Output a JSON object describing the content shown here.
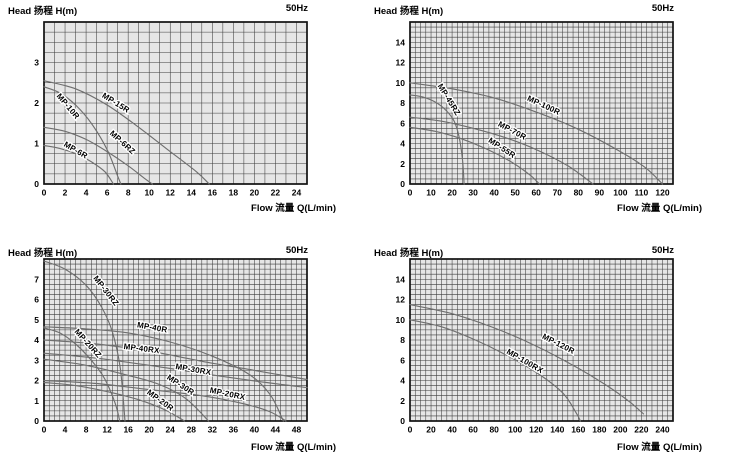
{
  "colors": {
    "plot_bg": "#e6e6e6",
    "grid": "#3d3d3d",
    "border": "#111111",
    "curve": "#6f6f6f",
    "text": "#000000",
    "label_halo": "#ffffff"
  },
  "chart_data": [
    {
      "type": "line",
      "head_label": "Head 扬程 H(m)",
      "freq_label": "50Hz",
      "flow_label": "Flow 流量 Q(L/min)",
      "xlim": [
        0,
        25
      ],
      "ylim": [
        0,
        4
      ],
      "x_minor_step": 1,
      "y_minor_step": 0.25,
      "xticks": [
        0,
        2,
        4,
        6,
        8,
        10,
        12,
        14,
        16,
        18,
        20,
        22,
        24
      ],
      "yticks": [
        0,
        1,
        2,
        3
      ],
      "grid": true,
      "series": [
        {
          "name": "MP-15R",
          "label_pos": {
            "x": 6.7,
            "y": 1.95,
            "rot": 32
          },
          "points": [
            [
              0,
              2.55
            ],
            [
              3,
              2.35
            ],
            [
              6,
              1.95
            ],
            [
              9,
              1.4
            ],
            [
              12,
              0.8
            ],
            [
              14.5,
              0.3
            ],
            [
              15.7,
              0
            ]
          ]
        },
        {
          "name": "MP-10R",
          "label_pos": {
            "x": 2.1,
            "y": 1.88,
            "rot": 50
          },
          "points": [
            [
              0,
              2.4
            ],
            [
              1.5,
              2.25
            ],
            [
              3,
              1.95
            ],
            [
              4.5,
              1.5
            ],
            [
              6,
              0.85
            ],
            [
              7,
              0.2
            ],
            [
              7.3,
              0
            ]
          ]
        },
        {
          "name": "MP-6RZ",
          "label_pos": {
            "x": 7.3,
            "y": 0.98,
            "rot": 42
          },
          "points": [
            [
              0,
              1.4
            ],
            [
              2,
              1.3
            ],
            [
              4,
              1.1
            ],
            [
              6,
              0.8
            ],
            [
              8,
              0.45
            ],
            [
              9.5,
              0.15
            ],
            [
              10.3,
              0
            ]
          ]
        },
        {
          "name": "MP-6R",
          "label_pos": {
            "x": 2.9,
            "y": 0.78,
            "rot": 30
          },
          "points": [
            [
              0,
              0.95
            ],
            [
              1.5,
              0.88
            ],
            [
              3,
              0.75
            ],
            [
              4.5,
              0.55
            ],
            [
              5.8,
              0.3
            ],
            [
              6.6,
              0
            ]
          ]
        }
      ]
    },
    {
      "type": "line",
      "head_label": "Head 扬程 H(m)",
      "freq_label": "50Hz",
      "flow_label": "Flow 流量 Q(L/min)",
      "xlim": [
        0,
        125
      ],
      "ylim": [
        0,
        16
      ],
      "x_minor_step": 2.5,
      "y_minor_step": 0.5,
      "xticks": [
        0,
        10,
        20,
        30,
        40,
        50,
        60,
        70,
        80,
        90,
        100,
        110,
        120
      ],
      "yticks": [
        0,
        2,
        4,
        6,
        8,
        10,
        12,
        14
      ],
      "grid": true,
      "series": [
        {
          "name": "MP-45RZ",
          "label_pos": {
            "x": 17.5,
            "y": 8.2,
            "rot": 58
          },
          "points": [
            [
              0,
              8.8
            ],
            [
              6,
              8.6
            ],
            [
              12,
              8.1
            ],
            [
              17,
              7.3
            ],
            [
              21,
              6.2
            ],
            [
              23.5,
              4.5
            ],
            [
              25,
              2.3
            ],
            [
              25.7,
              0
            ]
          ]
        },
        {
          "name": "MP-100R",
          "label_pos": {
            "x": 63,
            "y": 7.55,
            "rot": 25
          },
          "points": [
            [
              0,
              10
            ],
            [
              20,
              9.4
            ],
            [
              40,
              8.5
            ],
            [
              60,
              7.1
            ],
            [
              80,
              5.4
            ],
            [
              100,
              3.2
            ],
            [
              112,
              1.6
            ],
            [
              120,
              0
            ]
          ]
        },
        {
          "name": "MP-70R",
          "label_pos": {
            "x": 48,
            "y": 5.05,
            "rot": 28
          },
          "points": [
            [
              0,
              6.6
            ],
            [
              15,
              6.2
            ],
            [
              30,
              5.5
            ],
            [
              45,
              4.6
            ],
            [
              60,
              3.4
            ],
            [
              75,
              1.8
            ],
            [
              87,
              0
            ]
          ]
        },
        {
          "name": "MP-55R",
          "label_pos": {
            "x": 43,
            "y": 3.35,
            "rot": 33
          },
          "points": [
            [
              0,
              5.6
            ],
            [
              12,
              5.2
            ],
            [
              24,
              4.5
            ],
            [
              36,
              3.5
            ],
            [
              48,
              2.2
            ],
            [
              57,
              0.9
            ],
            [
              61.5,
              0
            ]
          ]
        }
      ]
    },
    {
      "type": "line",
      "head_label": "Head 扬程 H(m)",
      "freq_label": "50Hz",
      "flow_label": "Flow 流量 Q(L/min)",
      "xlim": [
        0,
        50
      ],
      "ylim": [
        0,
        8
      ],
      "x_minor_step": 1,
      "y_minor_step": 0.25,
      "xticks": [
        0,
        4,
        8,
        12,
        16,
        20,
        24,
        28,
        32,
        36,
        40,
        44,
        48
      ],
      "yticks": [
        0,
        1,
        2,
        3,
        4,
        5,
        6,
        7
      ],
      "grid": true,
      "series": [
        {
          "name": "MP-30RZ",
          "label_pos": {
            "x": 11.4,
            "y": 6.35,
            "rot": 52
          },
          "points": [
            [
              0,
              7.9
            ],
            [
              4,
              7.5
            ],
            [
              8,
              6.7
            ],
            [
              11,
              5.6
            ],
            [
              13,
              4.4
            ],
            [
              14.5,
              2.6
            ],
            [
              15.4,
              0
            ]
          ]
        },
        {
          "name": "MP-40R",
          "label_pos": {
            "x": 20.5,
            "y": 4.5,
            "rot": 10
          },
          "points": [
            [
              0,
              4.65
            ],
            [
              8,
              4.55
            ],
            [
              16,
              4.35
            ],
            [
              24,
              3.9
            ],
            [
              32,
              3.2
            ],
            [
              39,
              2.3
            ],
            [
              43,
              1.3
            ],
            [
              45.5,
              0
            ]
          ]
        },
        {
          "name": "MP-20RZ",
          "label_pos": {
            "x": 8.0,
            "y": 3.75,
            "rot": 48
          },
          "points": [
            [
              0,
              4.6
            ],
            [
              3,
              4.35
            ],
            [
              6,
              3.8
            ],
            [
              9,
              3.0
            ],
            [
              11.5,
              2.1
            ],
            [
              13.5,
              0.9
            ],
            [
              14.4,
              0
            ]
          ]
        },
        {
          "name": "MP-40RX",
          "label_pos": {
            "x": 18.5,
            "y": 3.45,
            "rot": 7
          },
          "points": [
            [
              0,
              4.0
            ],
            [
              10,
              3.8
            ],
            [
              20,
              3.45
            ],
            [
              30,
              2.95
            ],
            [
              40,
              2.5
            ],
            [
              50,
              2.05
            ]
          ]
        },
        {
          "name": "MP-30RX",
          "label_pos": {
            "x": 28.3,
            "y": 2.42,
            "rot": 10
          },
          "points": [
            [
              0,
              3.35
            ],
            [
              10,
              3.1
            ],
            [
              20,
              2.75
            ],
            [
              30,
              2.35
            ],
            [
              40,
              1.98
            ],
            [
              50,
              1.65
            ]
          ]
        },
        {
          "name": "MP-30R",
          "label_pos": {
            "x": 25.7,
            "y": 1.68,
            "rot": 33
          },
          "points": [
            [
              0,
              3.05
            ],
            [
              8,
              2.75
            ],
            [
              16,
              2.25
            ],
            [
              22,
              1.8
            ],
            [
              27,
              1.1
            ],
            [
              31.3,
              0
            ]
          ]
        },
        {
          "name": "MP-20RX",
          "label_pos": {
            "x": 34.8,
            "y": 1.22,
            "rot": 12
          },
          "points": [
            [
              0,
              2.0
            ],
            [
              10,
              1.85
            ],
            [
              20,
              1.55
            ],
            [
              30,
              1.25
            ],
            [
              38,
              0.85
            ],
            [
              43,
              0.45
            ],
            [
              46,
              0
            ]
          ]
        },
        {
          "name": "MP-20R",
          "label_pos": {
            "x": 21.8,
            "y": 0.92,
            "rot": 36
          },
          "points": [
            [
              0,
              1.9
            ],
            [
              6,
              1.75
            ],
            [
              12,
              1.45
            ],
            [
              18,
              1.05
            ],
            [
              23,
              0.55
            ],
            [
              26.7,
              0
            ]
          ]
        }
      ]
    },
    {
      "type": "line",
      "head_label": "Head 扬程 H(m)",
      "freq_label": "50Hz",
      "flow_label": "Flow 流量 Q(L/min)",
      "xlim": [
        0,
        250
      ],
      "ylim": [
        0,
        16
      ],
      "x_minor_step": 5,
      "y_minor_step": 0.5,
      "xticks": [
        0,
        20,
        40,
        60,
        80,
        100,
        120,
        140,
        160,
        180,
        200,
        220,
        240
      ],
      "yticks": [
        0,
        2,
        4,
        6,
        8,
        10,
        12,
        14
      ],
      "grid": true,
      "series": [
        {
          "name": "MP-120R",
          "label_pos": {
            "x": 140,
            "y": 7.4,
            "rot": 27
          },
          "points": [
            [
              0,
              11.5
            ],
            [
              40,
              10.6
            ],
            [
              80,
              9.2
            ],
            [
              120,
              7.4
            ],
            [
              160,
              5.2
            ],
            [
              190,
              3.3
            ],
            [
              210,
              1.8
            ],
            [
              222,
              0.7
            ]
          ]
        },
        {
          "name": "MP-100RX",
          "label_pos": {
            "x": 108,
            "y": 5.7,
            "rot": 30
          },
          "points": [
            [
              0,
              10
            ],
            [
              30,
              9.3
            ],
            [
              60,
              8.1
            ],
            [
              90,
              6.6
            ],
            [
              120,
              4.8
            ],
            [
              145,
              2.8
            ],
            [
              158,
              0.8
            ],
            [
              162,
              0
            ]
          ]
        }
      ]
    }
  ]
}
